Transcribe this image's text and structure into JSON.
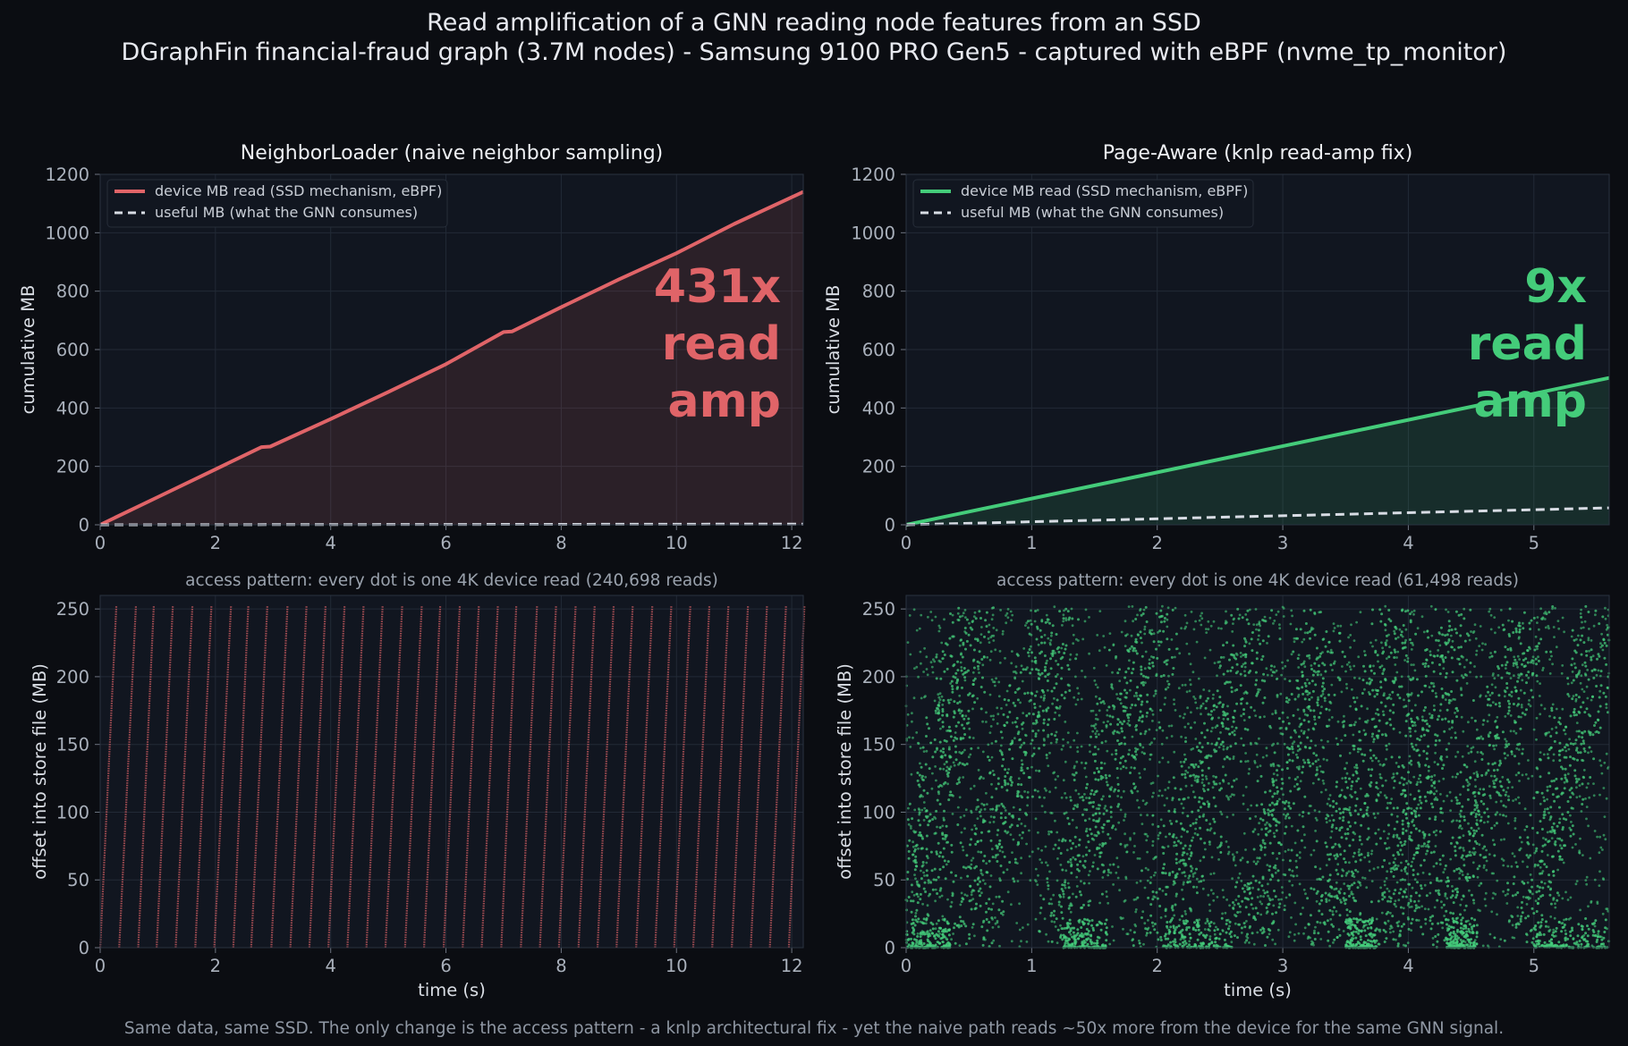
{
  "figure": {
    "title": "Read amplification of a GNN reading node features from an SSD",
    "subtitle": "DGraphFin financial-fraud graph (3.7M nodes) - Samsung 9100 PRO Gen5 - captured with eBPF (nvme_tp_monitor)",
    "footer": "Same data, same SSD. The only change is the access pattern - a knlp architectural fix - yet the naive path reads ~50x more from the device for the same GNN signal."
  },
  "colors": {
    "naive": "#e06468",
    "aware": "#44cc7a",
    "useful": "#d8dce4",
    "background": "#0b0d12",
    "plot_bg": "#111620"
  },
  "chart_data": [
    {
      "id": "naive-cumulative",
      "type": "line",
      "title": "NeighborLoader  (naive neighbor sampling)",
      "xlabel": "",
      "ylabel": "cumulative MB",
      "xlim": [
        0,
        12.2
      ],
      "ylim": [
        0,
        1200
      ],
      "xticks": [
        0,
        2,
        4,
        6,
        8,
        10,
        12
      ],
      "yticks": [
        0,
        200,
        400,
        600,
        800,
        1000,
        1200
      ],
      "grid": true,
      "legend": "top-left",
      "annotation": [
        "431x",
        "read",
        "amp"
      ],
      "series": [
        {
          "name": "device MB read (SSD mechanism, eBPF)",
          "style": "solid",
          "fill": true,
          "x": [
            0,
            1,
            2,
            2.8,
            2.95,
            4,
            5,
            6,
            7,
            7.15,
            8,
            9,
            10,
            11,
            12.2
          ],
          "y": [
            0,
            95,
            190,
            266,
            268,
            362,
            455,
            550,
            660,
            662,
            745,
            840,
            930,
            1030,
            1140
          ]
        },
        {
          "name": "useful MB (what the GNN consumes)",
          "style": "dashed",
          "fill": false,
          "x": [
            0,
            12.2
          ],
          "y": [
            0,
            2.6
          ]
        }
      ]
    },
    {
      "id": "aware-cumulative",
      "type": "line",
      "title": "Page-Aware  (knlp read-amp fix)",
      "xlabel": "",
      "ylabel": "cumulative MB",
      "xlim": [
        0,
        5.6
      ],
      "ylim": [
        0,
        1200
      ],
      "xticks": [
        0,
        1,
        2,
        3,
        4,
        5
      ],
      "yticks": [
        0,
        200,
        400,
        600,
        800,
        1000,
        1200
      ],
      "grid": true,
      "legend": "top-left",
      "annotation": [
        "9x",
        "read",
        "amp"
      ],
      "series": [
        {
          "name": "device MB read (SSD mechanism, eBPF)",
          "style": "solid",
          "fill": true,
          "x": [
            0,
            5.6
          ],
          "y": [
            0,
            503
          ]
        },
        {
          "name": "useful MB (what the GNN consumes)",
          "style": "dashed",
          "fill": false,
          "x": [
            0,
            5.6
          ],
          "y": [
            0,
            58
          ]
        }
      ]
    },
    {
      "id": "naive-access",
      "type": "scatter",
      "title": "access pattern: every dot is one 4K device read  (240,698 reads)",
      "xlabel": "time (s)",
      "ylabel": "offset into store file (MB)",
      "xlim": [
        0,
        12.2
      ],
      "ylim": [
        0,
        260
      ],
      "xticks": [
        0,
        2,
        4,
        6,
        8,
        10,
        12
      ],
      "yticks": [
        0,
        50,
        100,
        150,
        200,
        250
      ],
      "grid": true,
      "pattern": "sequential sweeps from 0 to 252 MB",
      "sweeps": [
        {
          "x_start": 0.0,
          "x_end": 0.28
        },
        {
          "x_start": 0.33,
          "x_end": 0.62
        },
        {
          "x_start": 0.66,
          "x_end": 0.93
        },
        {
          "x_start": 0.98,
          "x_end": 1.26
        },
        {
          "x_start": 1.31,
          "x_end": 1.6
        },
        {
          "x_start": 1.65,
          "x_end": 1.93
        },
        {
          "x_start": 1.98,
          "x_end": 2.27
        },
        {
          "x_start": 2.31,
          "x_end": 2.57
        },
        {
          "x_start": 2.62,
          "x_end": 2.9
        },
        {
          "x_start": 2.97,
          "x_end": 3.25
        },
        {
          "x_start": 3.3,
          "x_end": 3.58
        },
        {
          "x_start": 3.63,
          "x_end": 3.91
        },
        {
          "x_start": 3.96,
          "x_end": 4.24
        },
        {
          "x_start": 4.29,
          "x_end": 4.57
        },
        {
          "x_start": 4.62,
          "x_end": 4.9
        },
        {
          "x_start": 4.95,
          "x_end": 5.24
        },
        {
          "x_start": 5.29,
          "x_end": 5.58
        },
        {
          "x_start": 5.62,
          "x_end": 5.9
        },
        {
          "x_start": 5.96,
          "x_end": 6.24
        },
        {
          "x_start": 6.29,
          "x_end": 6.57
        },
        {
          "x_start": 6.62,
          "x_end": 6.9
        },
        {
          "x_start": 6.96,
          "x_end": 7.22
        },
        {
          "x_start": 7.3,
          "x_end": 7.58
        },
        {
          "x_start": 7.63,
          "x_end": 7.91
        },
        {
          "x_start": 7.96,
          "x_end": 8.25
        },
        {
          "x_start": 8.3,
          "x_end": 8.58
        },
        {
          "x_start": 8.63,
          "x_end": 8.91
        },
        {
          "x_start": 8.96,
          "x_end": 9.24
        },
        {
          "x_start": 9.3,
          "x_end": 9.58
        },
        {
          "x_start": 9.63,
          "x_end": 9.91
        },
        {
          "x_start": 9.96,
          "x_end": 10.24
        },
        {
          "x_start": 10.29,
          "x_end": 10.57
        },
        {
          "x_start": 10.62,
          "x_end": 10.9
        },
        {
          "x_start": 10.96,
          "x_end": 11.24
        },
        {
          "x_start": 11.29,
          "x_end": 11.57
        },
        {
          "x_start": 11.62,
          "x_end": 11.9
        },
        {
          "x_start": 11.95,
          "x_end": 12.22
        }
      ]
    },
    {
      "id": "aware-access",
      "type": "scatter",
      "title": "access pattern: every dot is one 4K device read  (61,498 reads)",
      "xlabel": "time (s)",
      "ylabel": "offset into store file (MB)",
      "xlim": [
        0,
        5.6
      ],
      "ylim": [
        0,
        260
      ],
      "xticks": [
        0,
        1,
        2,
        3,
        4,
        5
      ],
      "yticks": [
        0,
        50,
        100,
        150,
        200,
        250
      ],
      "grid": true,
      "pattern": "scattered reads across 0 to 252 MB with diagonal bands",
      "bands": [
        {
          "x_start": 0.0,
          "x_end": 0.55
        },
        {
          "x_start": 0.45,
          "x_end": 1.25
        },
        {
          "x_start": 1.15,
          "x_end": 2.05
        },
        {
          "x_start": 1.95,
          "x_end": 2.85
        },
        {
          "x_start": 2.7,
          "x_end": 3.4
        },
        {
          "x_start": 3.3,
          "x_end": 3.95
        },
        {
          "x_start": 3.85,
          "x_end": 4.35
        },
        {
          "x_start": 4.25,
          "x_end": 5.0
        },
        {
          "x_start": 4.9,
          "x_end": 5.6
        }
      ]
    }
  ]
}
